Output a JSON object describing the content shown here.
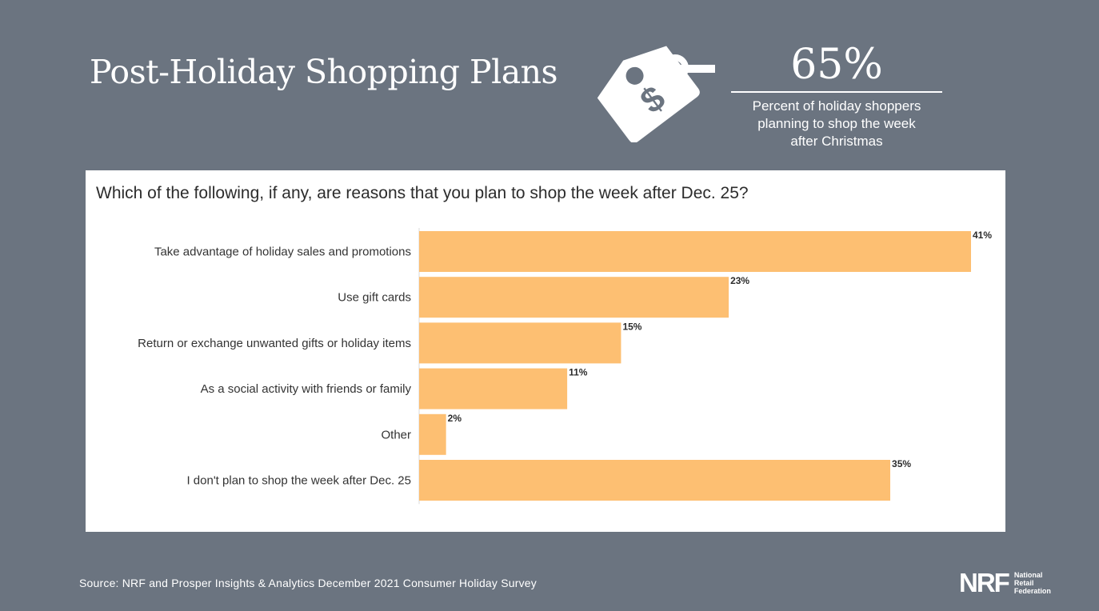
{
  "title": "Post-Holiday Shopping Plans",
  "stat": {
    "value": "65%",
    "description_lines": [
      "Percent of holiday shoppers",
      "planning to shop the week",
      "after Christmas"
    ]
  },
  "icon": {
    "name": "price-tag-dollar-icon",
    "glyph": "$"
  },
  "colors": {
    "background": "#6b7480",
    "bar": "#fdbf72",
    "panel": "#ffffff",
    "text_dark": "#2c2c2c"
  },
  "chart_data": {
    "type": "bar",
    "orientation": "horizontal",
    "title": "Which of the following, if any, are reasons that you plan to shop the week after Dec. 25?",
    "categories": [
      "Take advantage of holiday sales and promotions",
      "Use gift cards",
      "Return or exchange unwanted gifts or holiday items",
      "As a social activity with friends or family",
      "Other",
      "I don't plan to shop the week after Dec. 25"
    ],
    "values": [
      41,
      23,
      15,
      11,
      2,
      35
    ],
    "value_labels": [
      "41%",
      "23%",
      "15%",
      "11%",
      "2%",
      "35%"
    ],
    "xlim": [
      0,
      41
    ],
    "unit": "%",
    "grid": false
  },
  "source": "Source: NRF and Prosper Insights & Analytics December 2021 Consumer Holiday Survey",
  "logo": {
    "mark": "NRF",
    "text_lines": [
      "National",
      "Retail",
      "Federation"
    ]
  }
}
